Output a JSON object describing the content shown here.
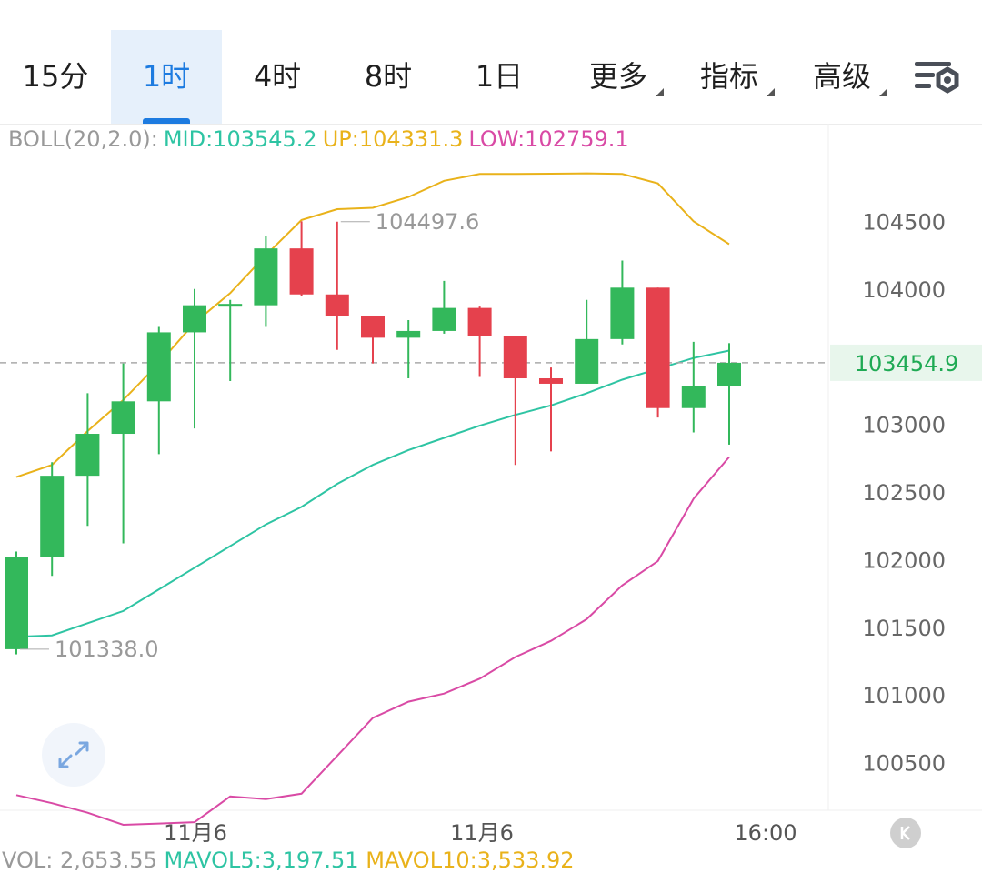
{
  "tabs": [
    {
      "label": "15分",
      "active": false,
      "dropdown": false
    },
    {
      "label": "1时",
      "active": true,
      "dropdown": false
    },
    {
      "label": "4时",
      "active": false,
      "dropdown": false
    },
    {
      "label": "8时",
      "active": false,
      "dropdown": false
    },
    {
      "label": "1日",
      "active": false,
      "dropdown": false
    },
    {
      "label": "更多",
      "active": false,
      "dropdown": true
    },
    {
      "label": "指标",
      "active": false,
      "dropdown": true
    },
    {
      "label": "高级",
      "active": false,
      "dropdown": true
    }
  ],
  "icons": {
    "settings": "chart-settings-icon",
    "expand": "expand-arrows-icon",
    "k": "k-line-icon"
  },
  "legend": {
    "boll": "BOLL(20,2.0):",
    "mid": "MID:103545.2",
    "up": "UP:104331.3",
    "low": "LOW:102759.1"
  },
  "volume": {
    "vol": "VOL: 2,653.55",
    "mavol5": "MAVOL5:3,197.51",
    "mavol10": "MAVOL10:3,533.92"
  },
  "colors": {
    "up": "#33b85b",
    "down": "#e5414d",
    "mid": "#2ec4a3",
    "upper": "#e9b21a",
    "lower": "#d94aa5",
    "accent": "#1d7be0",
    "price_tag": "#1faa54"
  },
  "chart_data": {
    "type": "candlestick",
    "y_ticks": [
      "104500",
      "104000",
      "103000",
      "102500",
      "102000",
      "101500",
      "101000",
      "100500"
    ],
    "x_labels": [
      "11月6",
      "11月6",
      "16:00"
    ],
    "current_price": "103454.9",
    "high_label": "104497.6",
    "low_label": "101338.0",
    "ylim": [
      100000,
      105000
    ],
    "candles": [
      {
        "o": 101338,
        "h": 102060,
        "l": 101300,
        "c": 102020
      },
      {
        "o": 102020,
        "h": 102720,
        "l": 101880,
        "c": 102620
      },
      {
        "o": 102620,
        "h": 103230,
        "l": 102250,
        "c": 102930
      },
      {
        "o": 102930,
        "h": 103450,
        "l": 102120,
        "c": 103170
      },
      {
        "o": 103170,
        "h": 103720,
        "l": 102780,
        "c": 103680
      },
      {
        "o": 103680,
        "h": 104000,
        "l": 102970,
        "c": 103880
      },
      {
        "o": 103880,
        "h": 103920,
        "l": 103320,
        "c": 103890
      },
      {
        "o": 103880,
        "h": 104390,
        "l": 103720,
        "c": 104300
      },
      {
        "o": 104300,
        "h": 104500,
        "l": 103950,
        "c": 103960
      },
      {
        "o": 103960,
        "h": 104497.6,
        "l": 103550,
        "c": 103800
      },
      {
        "o": 103800,
        "h": 103800,
        "l": 103450,
        "c": 103640
      },
      {
        "o": 103640,
        "h": 103770,
        "l": 103340,
        "c": 103690
      },
      {
        "o": 103690,
        "h": 104060,
        "l": 103670,
        "c": 103860
      },
      {
        "o": 103860,
        "h": 103870,
        "l": 103350,
        "c": 103650
      },
      {
        "o": 103650,
        "h": 103650,
        "l": 102700,
        "c": 103340
      },
      {
        "o": 103340,
        "h": 103420,
        "l": 102800,
        "c": 103300
      },
      {
        "o": 103300,
        "h": 103920,
        "l": 103300,
        "c": 103630
      },
      {
        "o": 103630,
        "h": 104210,
        "l": 103590,
        "c": 104010
      },
      {
        "o": 104010,
        "h": 104010,
        "l": 103050,
        "c": 103120
      },
      {
        "o": 103120,
        "h": 103610,
        "l": 102940,
        "c": 103280
      },
      {
        "o": 103280,
        "h": 103600,
        "l": 102850,
        "c": 103454.9
      }
    ],
    "series": [
      {
        "name": "UP",
        "values": [
          102610,
          102700,
          102950,
          103180,
          103450,
          103750,
          103970,
          104250,
          104510,
          104590,
          104600,
          104680,
          104800,
          104850,
          104850,
          104852,
          104855,
          104850,
          104780,
          104500,
          104331
        ]
      },
      {
        "name": "MID",
        "values": [
          101430,
          101440,
          101530,
          101620,
          101780,
          101940,
          102100,
          102260,
          102390,
          102560,
          102700,
          102810,
          102900,
          102990,
          103070,
          103140,
          103230,
          103330,
          103410,
          103490,
          103545
        ]
      },
      {
        "name": "LOW",
        "values": [
          100260,
          100200,
          100130,
          100040,
          100050,
          100060,
          100250,
          100230,
          100270,
          100550,
          100830,
          100950,
          101010,
          101120,
          101280,
          101400,
          101560,
          101810,
          101990,
          102450,
          102759
        ]
      }
    ]
  }
}
